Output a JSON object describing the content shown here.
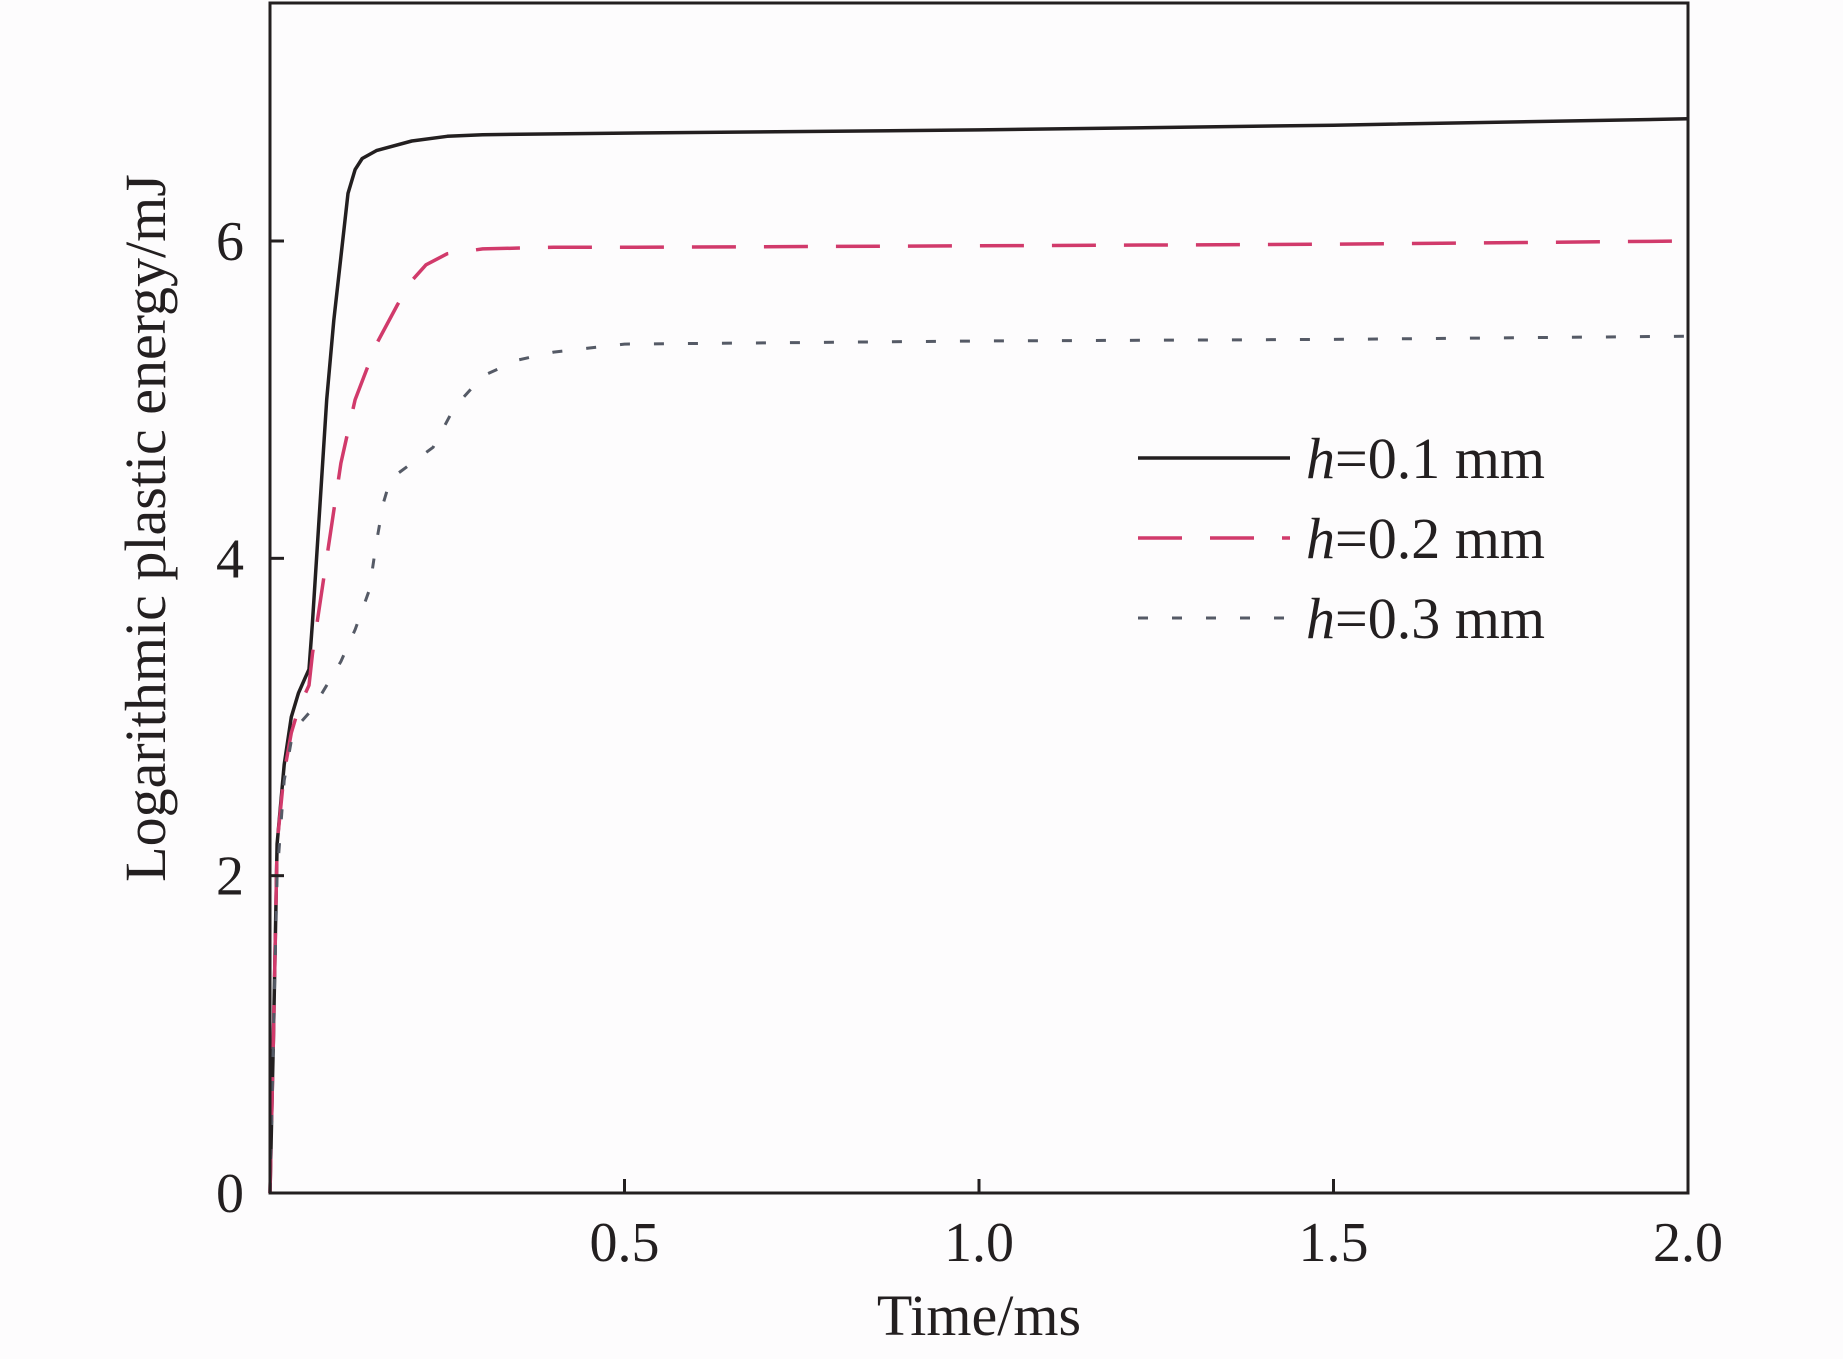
{
  "chart_data": {
    "type": "line",
    "xlabel": "Time/ms",
    "ylabel": "Logarithmic plastic energy/mJ",
    "xlim": [
      0,
      2.0
    ],
    "ylim": [
      0,
      7.5
    ],
    "xticks": [
      0.5,
      1.0,
      1.5,
      2.0
    ],
    "xtick_labels": [
      "0.5",
      "1.0",
      "1.5",
      "2.0"
    ],
    "yticks": [
      0,
      2,
      4,
      6
    ],
    "ytick_labels": [
      "0",
      "2",
      "4",
      "6"
    ],
    "grid": false,
    "legend_position": "right",
    "series": [
      {
        "name": "h=0.1 mm",
        "legend_var": "h",
        "legend_rest": "=0.1 mm",
        "color": "#231f20",
        "style": "solid",
        "x": [
          0.0,
          0.005,
          0.01,
          0.02,
          0.03,
          0.04,
          0.05,
          0.055,
          0.06,
          0.07,
          0.08,
          0.09,
          0.1,
          0.11,
          0.12,
          0.13,
          0.15,
          0.2,
          0.25,
          0.3,
          0.5,
          1.0,
          1.5,
          2.0
        ],
        "y": [
          0.0,
          1.0,
          2.2,
          2.7,
          3.0,
          3.15,
          3.25,
          3.3,
          3.6,
          4.3,
          5.0,
          5.5,
          5.9,
          6.3,
          6.45,
          6.52,
          6.57,
          6.63,
          6.66,
          6.67,
          6.68,
          6.7,
          6.73,
          6.77
        ]
      },
      {
        "name": "h=0.2 mm",
        "legend_var": "h",
        "legend_rest": "=0.2 mm",
        "color": "#d13a6b",
        "style": "dashed",
        "x": [
          0.0,
          0.005,
          0.01,
          0.02,
          0.03,
          0.04,
          0.05,
          0.055,
          0.06,
          0.08,
          0.1,
          0.12,
          0.15,
          0.18,
          0.2,
          0.22,
          0.25,
          0.3,
          0.4,
          0.5,
          1.0,
          1.5,
          2.0
        ],
        "y": [
          0.0,
          1.0,
          2.2,
          2.65,
          2.9,
          3.05,
          3.15,
          3.2,
          3.4,
          4.0,
          4.6,
          5.0,
          5.35,
          5.6,
          5.75,
          5.85,
          5.92,
          5.95,
          5.96,
          5.96,
          5.97,
          5.98,
          6.0
        ]
      },
      {
        "name": "h=0.3 mm",
        "legend_var": "h",
        "legend_rest": "=0.3 mm",
        "color": "#555a66",
        "style": "dotted",
        "x": [
          0.0,
          0.005,
          0.01,
          0.02,
          0.03,
          0.04,
          0.06,
          0.08,
          0.1,
          0.12,
          0.14,
          0.15,
          0.16,
          0.17,
          0.2,
          0.23,
          0.26,
          0.3,
          0.35,
          0.4,
          0.5,
          1.0,
          1.5,
          2.0
        ],
        "y": [
          0.0,
          1.0,
          2.0,
          2.6,
          2.85,
          2.95,
          3.05,
          3.2,
          3.35,
          3.55,
          3.8,
          4.1,
          4.35,
          4.5,
          4.6,
          4.7,
          4.95,
          5.15,
          5.25,
          5.3,
          5.35,
          5.37,
          5.38,
          5.4
        ]
      }
    ]
  }
}
